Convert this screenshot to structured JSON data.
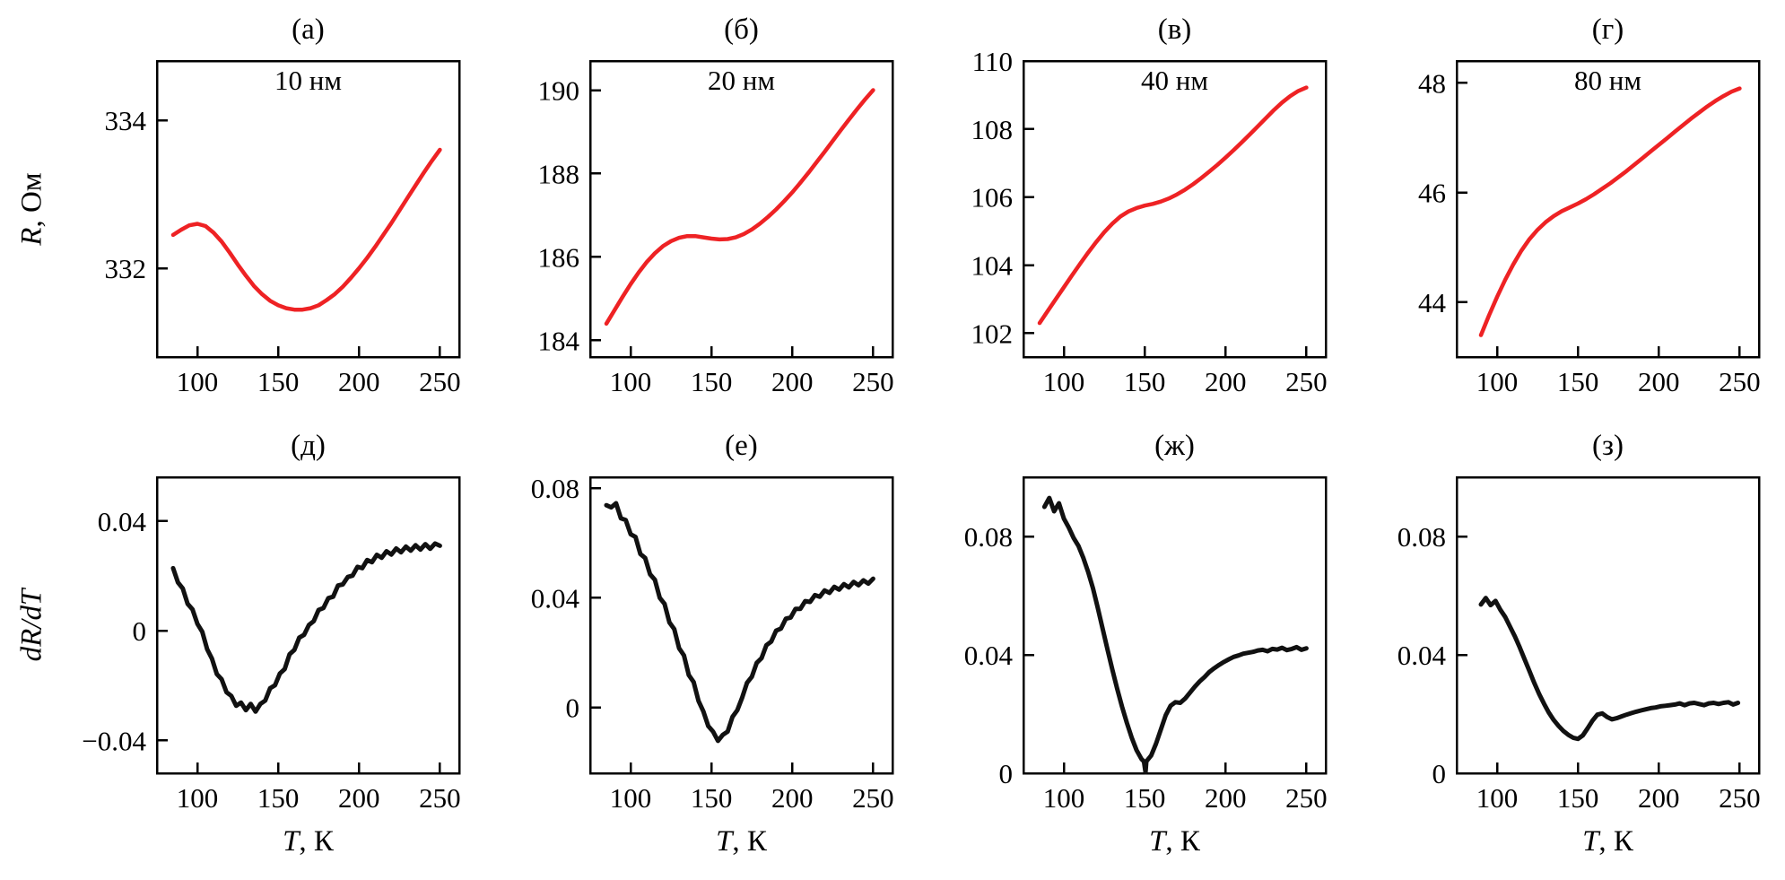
{
  "figure": {
    "background": "#ffffff",
    "text_color": "#000000",
    "top_curve_color": "#ee2224",
    "bottom_curve_color": "#111111"
  },
  "axes": {
    "x_axis_label_var": "T",
    "x_axis_label_rest": ", К",
    "top_row_ylabel_var": "R",
    "top_row_ylabel_rest": ", Ом",
    "bottom_row_ylabel": "dR/dT"
  },
  "chart_data": [
    {
      "id": "a",
      "type": "line",
      "panel_label": "(а)",
      "inner_label": "10 нм",
      "ylabel": "R, Ом",
      "xlabel": "",
      "color": "#ee2224",
      "lw": 4.5,
      "xlim": [
        75,
        262
      ],
      "ylim": [
        330.8,
        334.8
      ],
      "xticks": [
        100,
        150,
        200,
        250
      ],
      "xtick_labels": [
        "100",
        "150",
        "200",
        "250"
      ],
      "yticks": [
        332,
        334
      ],
      "ytick_labels": [
        "332",
        "334"
      ],
      "x": [
        85,
        90,
        95,
        100,
        105,
        110,
        115,
        120,
        125,
        130,
        135,
        140,
        145,
        150,
        155,
        160,
        165,
        170,
        175,
        180,
        185,
        190,
        195,
        200,
        205,
        210,
        215,
        220,
        225,
        230,
        235,
        240,
        245,
        250
      ],
      "y": [
        332.45,
        332.52,
        332.58,
        332.6,
        332.57,
        332.48,
        332.36,
        332.21,
        332.05,
        331.9,
        331.76,
        331.65,
        331.56,
        331.5,
        331.46,
        331.44,
        331.44,
        331.46,
        331.5,
        331.57,
        331.65,
        331.75,
        331.87,
        332.0,
        332.14,
        332.29,
        332.45,
        332.61,
        332.78,
        332.95,
        333.12,
        333.29,
        333.45,
        333.6
      ]
    },
    {
      "id": "b",
      "type": "line",
      "panel_label": "(б)",
      "inner_label": "20 нм",
      "ylabel": "",
      "xlabel": "",
      "color": "#ee2224",
      "lw": 4.5,
      "xlim": [
        75,
        262
      ],
      "ylim": [
        183.6,
        190.7
      ],
      "xticks": [
        100,
        150,
        200,
        250
      ],
      "xtick_labels": [
        "100",
        "150",
        "200",
        "250"
      ],
      "yticks": [
        184,
        186,
        188,
        190
      ],
      "ytick_labels": [
        "184",
        "186",
        "188",
        "190"
      ],
      "x": [
        85,
        90,
        95,
        100,
        105,
        110,
        115,
        120,
        125,
        130,
        135,
        140,
        145,
        150,
        155,
        160,
        165,
        170,
        175,
        180,
        185,
        190,
        195,
        200,
        205,
        210,
        215,
        220,
        225,
        230,
        235,
        240,
        245,
        250
      ],
      "y": [
        184.4,
        184.72,
        185.04,
        185.35,
        185.63,
        185.88,
        186.09,
        186.26,
        186.38,
        186.46,
        186.5,
        186.5,
        186.47,
        186.44,
        186.42,
        186.43,
        186.47,
        186.55,
        186.66,
        186.8,
        186.96,
        187.14,
        187.34,
        187.55,
        187.78,
        188.02,
        188.27,
        188.52,
        188.78,
        189.04,
        189.29,
        189.54,
        189.78,
        190.0
      ]
    },
    {
      "id": "v",
      "type": "line",
      "panel_label": "(в)",
      "inner_label": "40 нм",
      "ylabel": "",
      "xlabel": "",
      "color": "#ee2224",
      "lw": 4.5,
      "xlim": [
        75,
        262
      ],
      "ylim": [
        101.3,
        110
      ],
      "xticks": [
        100,
        150,
        200,
        250
      ],
      "xtick_labels": [
        "100",
        "150",
        "200",
        "250"
      ],
      "yticks": [
        102,
        104,
        106,
        108,
        110
      ],
      "ytick_labels": [
        "102",
        "104",
        "106",
        "108",
        "110"
      ],
      "x": [
        85,
        90,
        95,
        100,
        105,
        110,
        115,
        120,
        125,
        130,
        135,
        140,
        145,
        150,
        155,
        160,
        165,
        170,
        175,
        180,
        185,
        190,
        195,
        200,
        205,
        210,
        215,
        220,
        225,
        230,
        235,
        240,
        245,
        250
      ],
      "y": [
        102.3,
        102.65,
        103.0,
        103.35,
        103.7,
        104.04,
        104.37,
        104.68,
        104.97,
        105.22,
        105.43,
        105.58,
        105.68,
        105.75,
        105.8,
        105.87,
        105.96,
        106.08,
        106.22,
        106.38,
        106.56,
        106.75,
        106.95,
        107.16,
        107.38,
        107.61,
        107.84,
        108.08,
        108.32,
        108.56,
        108.78,
        108.97,
        109.12,
        109.22
      ]
    },
    {
      "id": "g",
      "type": "line",
      "panel_label": "(г)",
      "inner_label": "80 нм",
      "ylabel": "",
      "xlabel": "",
      "color": "#ee2224",
      "lw": 4.5,
      "xlim": [
        75,
        262
      ],
      "ylim": [
        43.0,
        48.4
      ],
      "xticks": [
        100,
        150,
        200,
        250
      ],
      "xtick_labels": [
        "100",
        "150",
        "200",
        "250"
      ],
      "yticks": [
        44,
        46,
        48
      ],
      "ytick_labels": [
        "44",
        "46",
        "48"
      ],
      "x": [
        90,
        95,
        100,
        105,
        110,
        115,
        120,
        125,
        130,
        135,
        140,
        145,
        150,
        155,
        160,
        165,
        170,
        175,
        180,
        185,
        190,
        195,
        200,
        205,
        210,
        215,
        220,
        225,
        230,
        235,
        240,
        245,
        250
      ],
      "y": [
        43.4,
        43.76,
        44.1,
        44.41,
        44.69,
        44.94,
        45.15,
        45.32,
        45.46,
        45.57,
        45.66,
        45.73,
        45.8,
        45.88,
        45.97,
        46.07,
        46.17,
        46.28,
        46.39,
        46.51,
        46.63,
        46.75,
        46.87,
        46.99,
        47.11,
        47.23,
        47.35,
        47.46,
        47.57,
        47.67,
        47.76,
        47.84,
        47.9
      ]
    },
    {
      "id": "d",
      "type": "line",
      "panel_label": "(д)",
      "inner_label": "",
      "ylabel": "dR/dT",
      "xlabel": "T, К",
      "color": "#111111",
      "lw": 5,
      "xlim": [
        75,
        262
      ],
      "ylim": [
        -0.052,
        0.056
      ],
      "xticks": [
        100,
        150,
        200,
        250
      ],
      "xtick_labels": [
        "100",
        "150",
        "200",
        "250"
      ],
      "yticks": [
        -0.04,
        0,
        0.04
      ],
      "ytick_labels": [
        "−0.04",
        "0",
        "0.04"
      ],
      "x": [
        85,
        88,
        91,
        94,
        97,
        100,
        103,
        106,
        109,
        112,
        115,
        118,
        121,
        124,
        127,
        130,
        133,
        136,
        139,
        142,
        145,
        148,
        151,
        154,
        157,
        160,
        163,
        166,
        169,
        172,
        175,
        178,
        181,
        184,
        187,
        190,
        193,
        196,
        199,
        202,
        205,
        208,
        211,
        214,
        217,
        220,
        223,
        226,
        229,
        232,
        235,
        238,
        241,
        244,
        247,
        250
      ],
      "y": [
        0.0228,
        0.0176,
        0.0154,
        0.0098,
        0.0078,
        0.0025,
        -0.0004,
        -0.0067,
        -0.0102,
        -0.0158,
        -0.0177,
        -0.0224,
        -0.0238,
        -0.0274,
        -0.0262,
        -0.029,
        -0.0267,
        -0.0295,
        -0.0267,
        -0.0255,
        -0.021,
        -0.0199,
        -0.0156,
        -0.014,
        -0.0086,
        -0.007,
        -0.0025,
        -0.0015,
        0.0021,
        0.0035,
        0.0076,
        0.0083,
        0.0119,
        0.0124,
        0.0165,
        0.0169,
        0.0196,
        0.0201,
        0.0233,
        0.0228,
        0.0258,
        0.025,
        0.0277,
        0.0266,
        0.029,
        0.0278,
        0.03,
        0.0286,
        0.0307,
        0.0292,
        0.0312,
        0.0296,
        0.0316,
        0.0299,
        0.0318,
        0.031
      ]
    },
    {
      "id": "e",
      "type": "line",
      "panel_label": "(е)",
      "inner_label": "",
      "ylabel": "",
      "xlabel": "T, К",
      "color": "#111111",
      "lw": 5,
      "xlim": [
        75,
        262
      ],
      "ylim": [
        -0.024,
        0.084
      ],
      "xticks": [
        100,
        150,
        200,
        250
      ],
      "xtick_labels": [
        "100",
        "150",
        "200",
        "250"
      ],
      "yticks": [
        0,
        0.04,
        0.08
      ],
      "ytick_labels": [
        "0",
        "0.04",
        "0.08"
      ],
      "x": [
        85,
        88,
        91,
        94,
        97,
        100,
        103,
        106,
        109,
        112,
        115,
        118,
        121,
        124,
        127,
        130,
        133,
        136,
        139,
        142,
        145,
        148,
        151,
        154,
        157,
        160,
        163,
        166,
        169,
        172,
        175,
        178,
        181,
        184,
        187,
        190,
        193,
        196,
        199,
        202,
        205,
        208,
        211,
        214,
        217,
        220,
        223,
        226,
        229,
        232,
        235,
        238,
        241,
        244,
        247,
        250
      ],
      "y": [
        0.0738,
        0.073,
        0.0745,
        0.069,
        0.0684,
        0.0632,
        0.0622,
        0.056,
        0.0545,
        0.0486,
        0.0466,
        0.04,
        0.0378,
        0.031,
        0.0286,
        0.0216,
        0.019,
        0.0118,
        0.0093,
        0.0024,
        -0.0014,
        -0.0068,
        -0.0088,
        -0.0122,
        -0.01,
        -0.0088,
        -0.0034,
        -0.001,
        0.0036,
        0.009,
        0.0112,
        0.0163,
        0.018,
        0.0227,
        0.024,
        0.028,
        0.0288,
        0.0324,
        0.0328,
        0.036,
        0.036,
        0.0388,
        0.0385,
        0.041,
        0.0404,
        0.0427,
        0.0418,
        0.044,
        0.043,
        0.045,
        0.0438,
        0.0458,
        0.0446,
        0.0464,
        0.0452,
        0.047
      ]
    },
    {
      "id": "zh",
      "type": "line",
      "panel_label": "(ж)",
      "inner_label": "",
      "ylabel": "",
      "xlabel": "T, К",
      "color": "#111111",
      "lw": 5,
      "xlim": [
        75,
        262
      ],
      "ylim": [
        0,
        0.1
      ],
      "xticks": [
        100,
        150,
        200,
        250
      ],
      "xtick_labels": [
        "100",
        "150",
        "200",
        "250"
      ],
      "yticks": [
        0,
        0.04,
        0.08
      ],
      "ytick_labels": [
        "0",
        "0.04",
        "0.08"
      ],
      "x": [
        88,
        91,
        94,
        97,
        100,
        103,
        106,
        109,
        112,
        115,
        118,
        121,
        124,
        127,
        130,
        133,
        136,
        139,
        142,
        145,
        148,
        149.5,
        150.5,
        151,
        154,
        157,
        160,
        163,
        166,
        169,
        172,
        175,
        178,
        181,
        184,
        187,
        190,
        193,
        196,
        199,
        202,
        205,
        208,
        211,
        214,
        217,
        220,
        223,
        226,
        229,
        232,
        235,
        238,
        241,
        244,
        247,
        250
      ],
      "y": [
        0.09,
        0.093,
        0.0885,
        0.0912,
        0.086,
        0.083,
        0.0795,
        0.0768,
        0.0728,
        0.068,
        0.0625,
        0.0558,
        0.0488,
        0.0418,
        0.035,
        0.0285,
        0.0225,
        0.017,
        0.012,
        0.0078,
        0.0048,
        0.004,
        0.0003,
        0.004,
        0.006,
        0.01,
        0.0148,
        0.0196,
        0.0228,
        0.024,
        0.0238,
        0.0252,
        0.0272,
        0.0292,
        0.031,
        0.0325,
        0.0342,
        0.0355,
        0.0366,
        0.0376,
        0.0385,
        0.0393,
        0.0398,
        0.0404,
        0.0407,
        0.041,
        0.0415,
        0.0417,
        0.0412,
        0.042,
        0.0418,
        0.0424,
        0.0416,
        0.042,
        0.0426,
        0.0417,
        0.0422
      ]
    },
    {
      "id": "z",
      "type": "line",
      "panel_label": "(з)",
      "inner_label": "",
      "ylabel": "",
      "xlabel": "T, К",
      "color": "#111111",
      "lw": 5,
      "xlim": [
        75,
        262
      ],
      "ylim": [
        0,
        0.1
      ],
      "xticks": [
        100,
        150,
        200,
        250
      ],
      "xtick_labels": [
        "100",
        "150",
        "200",
        "250"
      ],
      "yticks": [
        0,
        0.04,
        0.08
      ],
      "ytick_labels": [
        "0",
        "0.04",
        "0.08"
      ],
      "x": [
        90,
        93,
        96,
        99,
        102,
        105,
        108,
        111,
        114,
        117,
        120,
        123,
        126,
        129,
        132,
        135,
        138,
        141,
        144,
        147,
        150,
        153,
        156,
        159,
        162,
        165,
        168,
        171,
        174,
        177,
        180,
        183,
        186,
        189,
        192,
        195,
        198,
        201,
        204,
        207,
        210,
        213,
        216,
        219,
        222,
        225,
        228,
        231,
        234,
        237,
        240,
        243,
        246,
        249
      ],
      "y": [
        0.057,
        0.0592,
        0.0568,
        0.0582,
        0.0552,
        0.0528,
        0.0495,
        0.0462,
        0.0425,
        0.0385,
        0.0345,
        0.0305,
        0.0268,
        0.0235,
        0.0205,
        0.018,
        0.016,
        0.0143,
        0.013,
        0.012,
        0.0116,
        0.0128,
        0.0152,
        0.0178,
        0.0198,
        0.0202,
        0.019,
        0.0182,
        0.0186,
        0.0192,
        0.0198,
        0.0203,
        0.0208,
        0.0212,
        0.0216,
        0.022,
        0.0222,
        0.0226,
        0.0228,
        0.023,
        0.0232,
        0.0236,
        0.023,
        0.0236,
        0.0238,
        0.0234,
        0.023,
        0.0236,
        0.0238,
        0.0234,
        0.0238,
        0.024,
        0.0232,
        0.0238
      ]
    }
  ]
}
